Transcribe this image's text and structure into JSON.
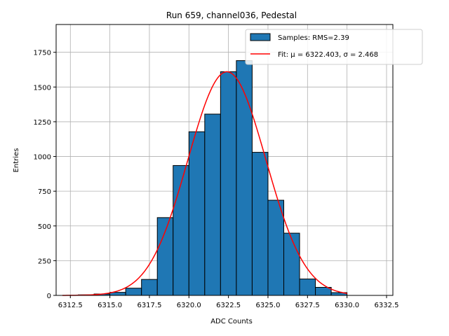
{
  "chart_data": {
    "type": "bar",
    "title": "Run 659, channel036, Pedestal",
    "xlabel": "ADC Counts",
    "ylabel": "Entries",
    "xlim": [
      6311.6,
      6332.9
    ],
    "ylim": [
      0,
      1950
    ],
    "grid": true,
    "legend_position": "top-right",
    "x_ticks": [
      6312.5,
      6315.0,
      6317.5,
      6320.0,
      6322.5,
      6325.0,
      6327.5,
      6330.0,
      6332.5
    ],
    "x_tick_labels": [
      "6312.5",
      "6315.0",
      "6317.5",
      "6320.0",
      "6322.5",
      "6325.0",
      "6327.5",
      "6330.0",
      "6332.5"
    ],
    "y_ticks": [
      0,
      250,
      500,
      750,
      1000,
      1250,
      1500,
      1750
    ],
    "y_tick_labels": [
      "0",
      "250",
      "500",
      "750",
      "1000",
      "1250",
      "1500",
      "1750"
    ],
    "histogram": {
      "name": "Samples: RMS=2.39",
      "color": "#1f77b4",
      "edge_color": "#000000",
      "bin_width": 1,
      "bins": [
        {
          "start": 6313,
          "end": 6314,
          "count": 4
        },
        {
          "start": 6314,
          "end": 6315,
          "count": 10
        },
        {
          "start": 6315,
          "end": 6316,
          "count": 22
        },
        {
          "start": 6316,
          "end": 6317,
          "count": 52
        },
        {
          "start": 6317,
          "end": 6318,
          "count": 115
        },
        {
          "start": 6318,
          "end": 6319,
          "count": 560
        },
        {
          "start": 6319,
          "end": 6320,
          "count": 935
        },
        {
          "start": 6320,
          "end": 6321,
          "count": 1178
        },
        {
          "start": 6321,
          "end": 6322,
          "count": 1305
        },
        {
          "start": 6322,
          "end": 6323,
          "count": 1610
        },
        {
          "start": 6323,
          "end": 6324,
          "count": 1690
        },
        {
          "start": 6324,
          "end": 6325,
          "count": 1030
        },
        {
          "start": 6325,
          "end": 6326,
          "count": 685
        },
        {
          "start": 6326,
          "end": 6327,
          "count": 448
        },
        {
          "start": 6327,
          "end": 6328,
          "count": 118
        },
        {
          "start": 6328,
          "end": 6329,
          "count": 58
        },
        {
          "start": 6329,
          "end": 6330,
          "count": 20
        }
      ]
    },
    "fit": {
      "name": "Fit: μ = 6322.403, σ = 2.468",
      "color": "#ff0000",
      "mu": 6322.403,
      "sigma": 2.468,
      "amplitude": 1610,
      "x_range": [
        6312.0,
        6330.0
      ]
    }
  }
}
